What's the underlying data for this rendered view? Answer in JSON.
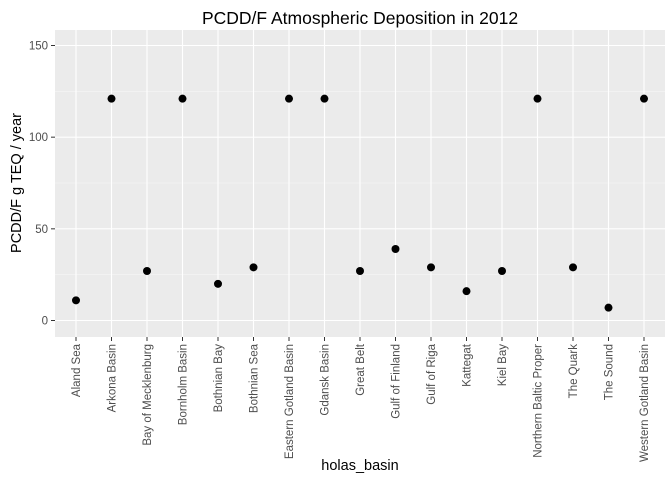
{
  "chart_data": {
    "type": "scatter",
    "title": "PCDD/F Atmospheric Deposition in 2012",
    "xlabel": "holas_basin",
    "ylabel": "PCDD/F g TEQ / year",
    "ylim": [
      -8,
      155
    ],
    "yticks": [
      0,
      50,
      100,
      150
    ],
    "grid": true,
    "legend": "none",
    "colors": {
      "panel": "#ebebeb",
      "grid_major": "#ffffff",
      "grid_minor": "#f5f5f5",
      "point": "#000000",
      "tick": "#333333"
    },
    "categories": [
      "Aland Sea",
      "Arkona Basin",
      "Bay of Mecklenburg",
      "Bornholm Basin",
      "Bothnian Bay",
      "Bothnian Sea",
      "Eastern Gotland Basin",
      "Gdansk Basin",
      "Great Belt",
      "Gulf of Finland",
      "Gulf of Riga",
      "Kattegat",
      "Kiel Bay",
      "Northern Baltic Proper",
      "The Quark",
      "The Sound",
      "Western Gotland Basin"
    ],
    "values": [
      11,
      121,
      27,
      121,
      20,
      29,
      121,
      121,
      27,
      39,
      29,
      16,
      27,
      121,
      29,
      7,
      121
    ]
  }
}
